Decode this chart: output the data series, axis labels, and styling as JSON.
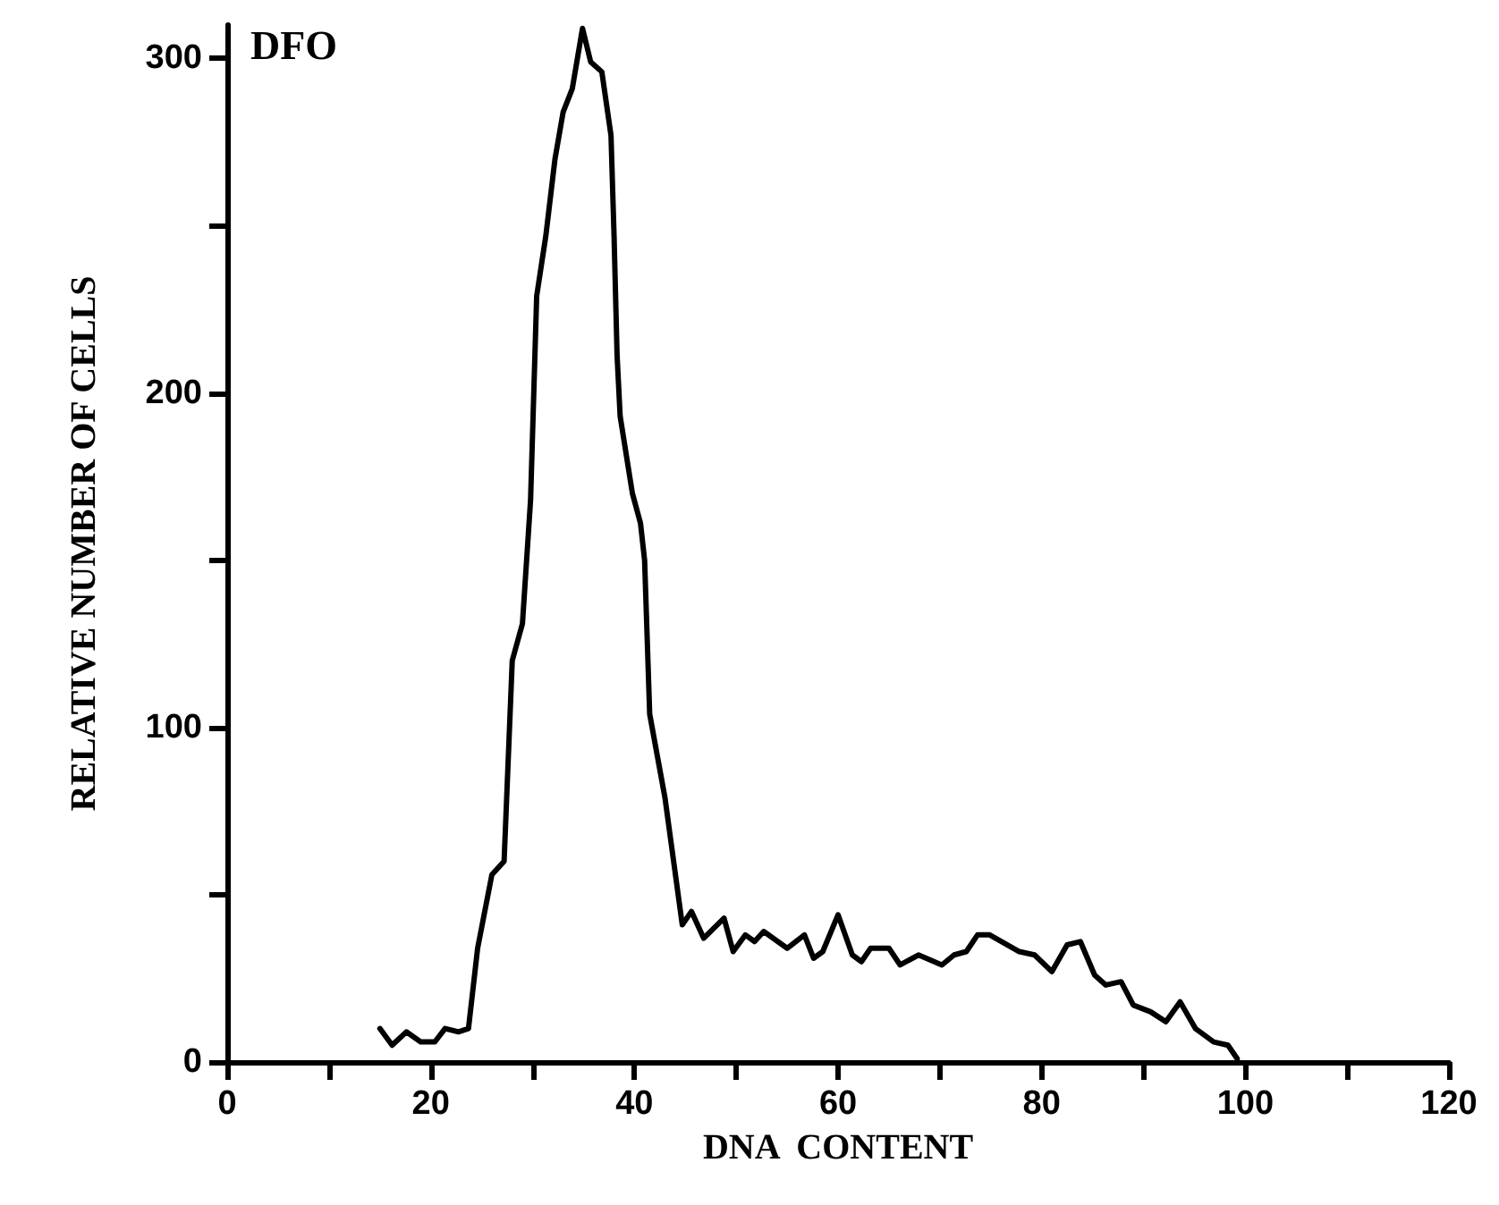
{
  "chart_data": {
    "type": "line",
    "xlabel": "DNA  CONTENT",
    "ylabel": "RELATIVE NUMBER OF CELLS",
    "annotations": [
      "DFO"
    ],
    "xlim": [
      0,
      120
    ],
    "ylim": [
      0,
      310
    ],
    "xticks": [
      0,
      {
        "value": 10,
        "label": null
      },
      20,
      {
        "value": 30,
        "label": null
      },
      40,
      {
        "value": 50,
        "label": null
      },
      60,
      {
        "value": 70,
        "label": null
      },
      80,
      {
        "value": 90,
        "label": null
      },
      100,
      {
        "value": 110,
        "label": null
      },
      120
    ],
    "yticks": [
      0,
      {
        "value": 50,
        "label": null
      },
      100,
      {
        "value": 150,
        "label": null
      },
      200,
      {
        "value": 250,
        "label": null
      },
      300
    ],
    "grid": false,
    "marker": "none",
    "line_style": "solid",
    "series": [
      {
        "color": "#000000",
        "x": [
          15,
          16.2,
          17.6,
          19,
          20.4,
          21.4,
          22.7,
          23.7,
          24.6,
          26,
          27.2,
          28,
          29,
          29.8,
          30.4,
          31.3,
          32.2,
          33,
          33.9,
          34.9,
          35.7,
          36.8,
          37.7,
          38,
          38.3,
          38.6,
          39.8,
          40.6,
          41,
          41.5,
          43,
          44.7,
          45.6,
          46.8,
          48.8,
          49.7,
          50.9,
          51.8,
          52.7,
          55,
          56.7,
          57.6,
          58.5,
          60,
          61.4,
          62.3,
          63.2,
          65,
          66.1,
          67.9,
          70.2,
          71.4,
          72.6,
          73.7,
          74.9,
          77.8,
          79.3,
          81,
          82.5,
          83.8,
          85.2,
          86.3,
          87.8,
          89,
          90.7,
          92.2,
          93.6,
          95.1,
          96.9,
          98.3,
          99.2
        ],
        "values": [
          10,
          5,
          9,
          6,
          6,
          10,
          9,
          10,
          34,
          56,
          60,
          120,
          131,
          168,
          229,
          247,
          270,
          284,
          291,
          309,
          299,
          296,
          277,
          247,
          211,
          193,
          170,
          161,
          150,
          104,
          79,
          41,
          45,
          37,
          43,
          33,
          38,
          36,
          39,
          34,
          38,
          31,
          33,
          44,
          32,
          30,
          34,
          34,
          29,
          32,
          29,
          32,
          33,
          38,
          38,
          33,
          32,
          27,
          35,
          36,
          26,
          23,
          24,
          17,
          15,
          12,
          18,
          10,
          6,
          5,
          1
        ]
      }
    ]
  }
}
